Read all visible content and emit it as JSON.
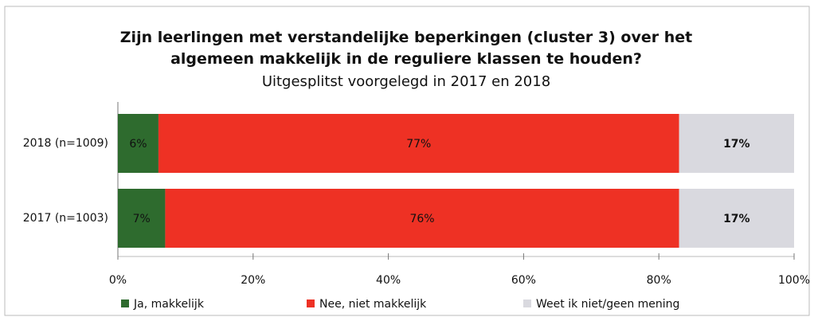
{
  "chart_data": {
    "type": "stacked-bar-horizontal",
    "title": "Zijn leerlingen met verstandelijke beperkingen (cluster 3) over het algemeen makkelijk in de reguliere klassen te houden?",
    "subtitle": "Uitgesplitst voorgelegd in 2017 en 2018",
    "categories": [
      "2018 (n=1009)",
      "2017 (n=1003)"
    ],
    "series": [
      {
        "name": "Ja, makkelijk",
        "color": "#2e6b2e",
        "values": [
          6,
          7
        ],
        "value_labels": [
          "6%",
          "7%"
        ]
      },
      {
        "name": "Nee, niet makkelijk",
        "color": "#ee3124",
        "values": [
          77,
          76
        ],
        "value_labels": [
          "77%",
          "76%"
        ]
      },
      {
        "name": "Weet ik niet/geen mening",
        "color": "#d9d9df",
        "values": [
          17,
          17
        ],
        "value_labels": [
          "17%",
          "17%"
        ]
      }
    ],
    "xlim": [
      0,
      100
    ],
    "xticks": [
      {
        "value": 0,
        "label": "0%"
      },
      {
        "value": 20,
        "label": "20%"
      },
      {
        "value": 40,
        "label": "40%"
      },
      {
        "value": 60,
        "label": "60%"
      },
      {
        "value": 80,
        "label": "80%"
      },
      {
        "value": 100,
        "label": "100%"
      }
    ],
    "legend": "bottom"
  }
}
